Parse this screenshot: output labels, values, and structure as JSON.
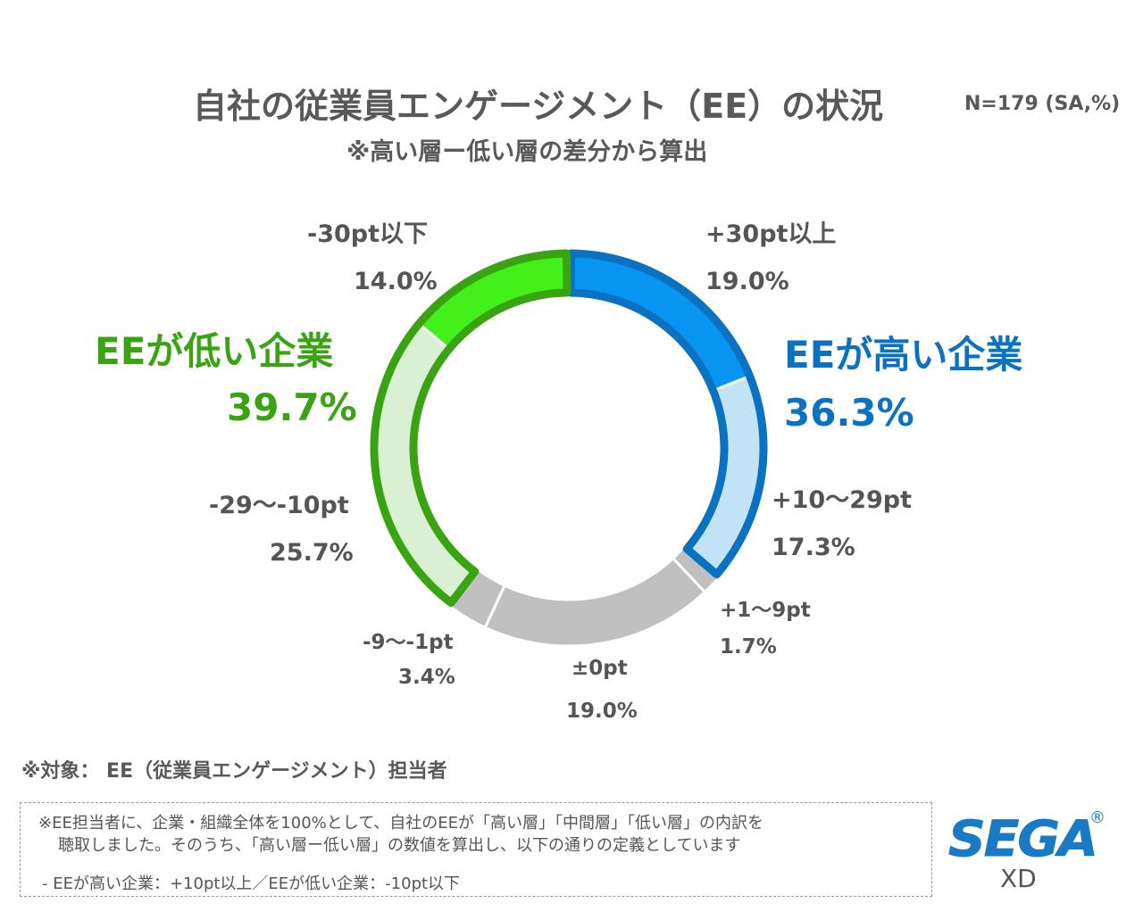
{
  "header": {
    "title": "自社の従業員エンゲージメント（EE）の状況",
    "sample_note": "N=179 (SA,%)",
    "subtitle": "※高い層ー低い層の差分から算出"
  },
  "groups": {
    "low": {
      "label": "EEが低い企業",
      "value": "39.7%",
      "color": "#3aa312"
    },
    "high": {
      "label": "EEが高い企業",
      "value": "36.3%",
      "color": "#0b72c2"
    }
  },
  "chart_data": {
    "type": "pie",
    "subtype": "donut",
    "title": "自社の従業員エンゲージメント（EE）の状況",
    "subtitle": "※高い層ー低い層の差分から算出",
    "n": "N=179 (SA,%)",
    "start": "top",
    "direction": "clockwise",
    "unit": "%",
    "slices": [
      {
        "label": "+30pt以上",
        "value": 19.0,
        "display": "19.0%",
        "group": "high",
        "fill": "#0895f2",
        "stroke": "#0b72c2"
      },
      {
        "label": "+10〜29pt",
        "value": 17.3,
        "display": "17.3%",
        "group": "high",
        "fill": "#c2e2f5",
        "stroke": "#0b72c2"
      },
      {
        "label": "+1〜9pt",
        "value": 1.7,
        "display": "1.7%",
        "group": "neutral",
        "fill": "#c0c0c0",
        "stroke": null
      },
      {
        "label": "±0pt",
        "value": 19.0,
        "display": "19.0%",
        "group": "neutral",
        "fill": "#c0c0c0",
        "stroke": null
      },
      {
        "label": "-9〜-1pt",
        "value": 3.4,
        "display": "3.4%",
        "group": "neutral",
        "fill": "#c0c0c0",
        "stroke": null
      },
      {
        "label": "-29〜-10pt",
        "value": 25.7,
        "display": "25.7%",
        "group": "low",
        "fill": "#daf0d2",
        "stroke": "#3aa312"
      },
      {
        "label": "-30pt以下",
        "value": 14.0,
        "display": "14.0%",
        "group": "low",
        "fill": "#44f01a",
        "stroke": "#3aa312"
      }
    ],
    "group_totals": [
      {
        "name": "EEが高い企業",
        "value": 36.3
      },
      {
        "name": "EEが低い企業",
        "value": 39.7
      }
    ]
  },
  "footer": {
    "target": "※対象：  EE（従業員エンゲージメント）担当者",
    "note_line1": "※EE担当者に、企業・組織全体を100%として、自社のEEが「高い層」「中間層」「低い層」の内訳を",
    "note_line2": "聴取しました。そのうち、「高い層ー低い層」の数値を算出し、以下の通りの定義としています",
    "note_line3": "- EEが高い企業：+10pt以上／EEが低い企業：-10pt以下"
  },
  "logo": {
    "brand": "SEGA",
    "registered": "®",
    "sub": "XD",
    "color": "#1b7ac4"
  }
}
